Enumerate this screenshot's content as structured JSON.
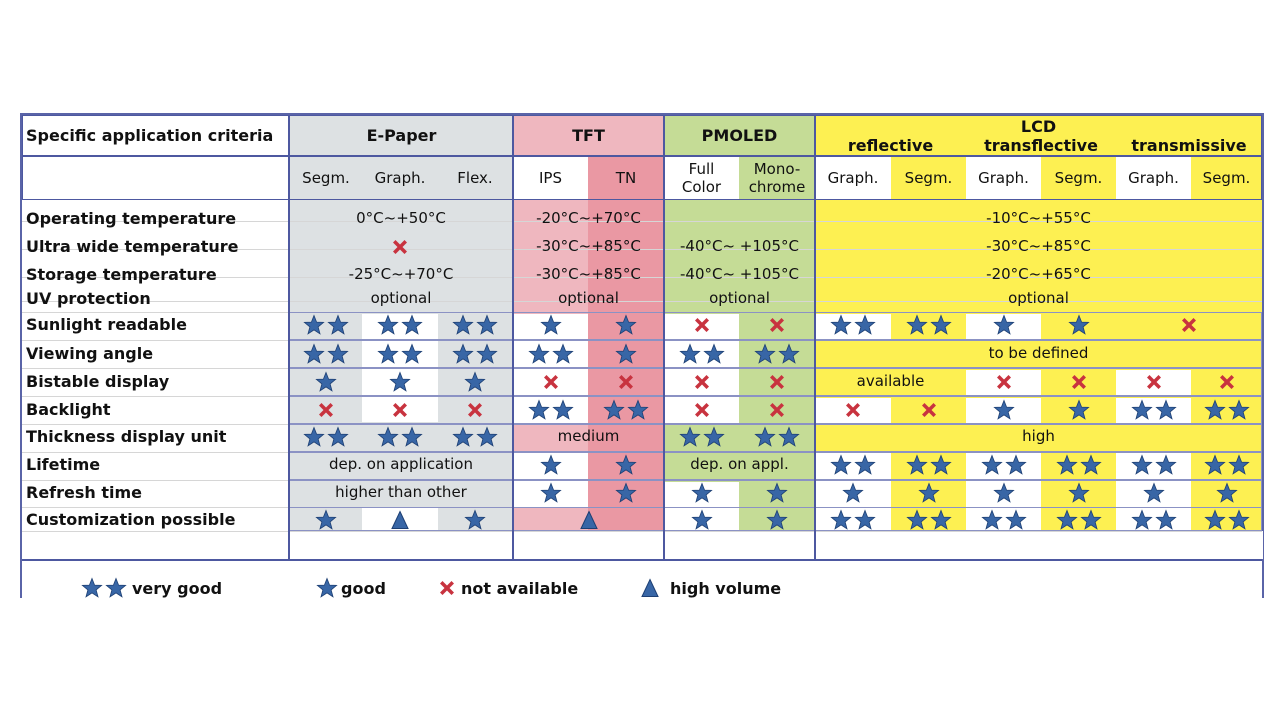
{
  "colors": {
    "grey": "#dde1e3",
    "pink": "#efb7bf",
    "pink_dark": "#ea98a3",
    "green": "#c5dc96",
    "yellow": "#fdf052",
    "border": "#4d58a0",
    "star": "#3866a6",
    "cross": "#c8333f"
  },
  "header": {
    "criteria_title": "Specific application criteria",
    "groups": {
      "epaper": "E-Paper",
      "tft": "TFT",
      "pmoled": "PMOLED",
      "lcd": "LCD",
      "lcd_sub": [
        "reflective",
        "transflective",
        "transmissive"
      ]
    },
    "sub": {
      "ep_segm": "Segm.",
      "ep_graph": "Graph.",
      "ep_flex": "Flex.",
      "tft_ips": "IPS",
      "tft_tn": "TN",
      "pm_full": "Full\nColor",
      "pm_mono": "Mono-\nchrome",
      "lcd": [
        "Graph.",
        "Segm.",
        "Graph.",
        "Segm.",
        "Graph.",
        "Segm."
      ]
    }
  },
  "criteria": [
    "Operating temperature",
    "Ultra wide temperature",
    "Storage temperature",
    "UV protection",
    "Sunlight readable",
    "Viewing angle",
    "Bistable display",
    "Backlight",
    "Thickness display unit",
    "Lifetime",
    "Refresh time",
    "Customization possible"
  ],
  "cells": {
    "ep_op": "0°C~+50°C",
    "ep_storage": "-25°C~+70°C",
    "ep_uv": "optional",
    "ep_lifetime": "dep. on application",
    "ep_refresh": "higher than other",
    "tft_op": "-20°C~+70°C",
    "tft_ultra": "-30°C~+85°C",
    "tft_storage": "-30°C~+85°C",
    "tft_uv": "optional",
    "tft_thickness": "medium",
    "pm_ultra": "-40°C~ +105°C",
    "pm_storage": "-40°C~ +105°C",
    "pm_uv": "optional",
    "pm_lifetime": "dep. on appl.",
    "lcd_op": "-10°C~+55°C",
    "lcd_ultra": "-30°C~+85°C",
    "lcd_storage": "-20°C~+65°C",
    "lcd_uv": "optional",
    "lcd_viewing": "to be defined",
    "lcd_bistable_refl": "available",
    "lcd_thickness": "high"
  },
  "legend": {
    "very_good": "very good",
    "good": "good",
    "not_available": "not available",
    "high_volume": "high volume"
  },
  "rating_icons": {
    "2": "double-star-icon",
    "1": "star-icon",
    "x": "cross-icon",
    "t": "triangle-icon"
  }
}
